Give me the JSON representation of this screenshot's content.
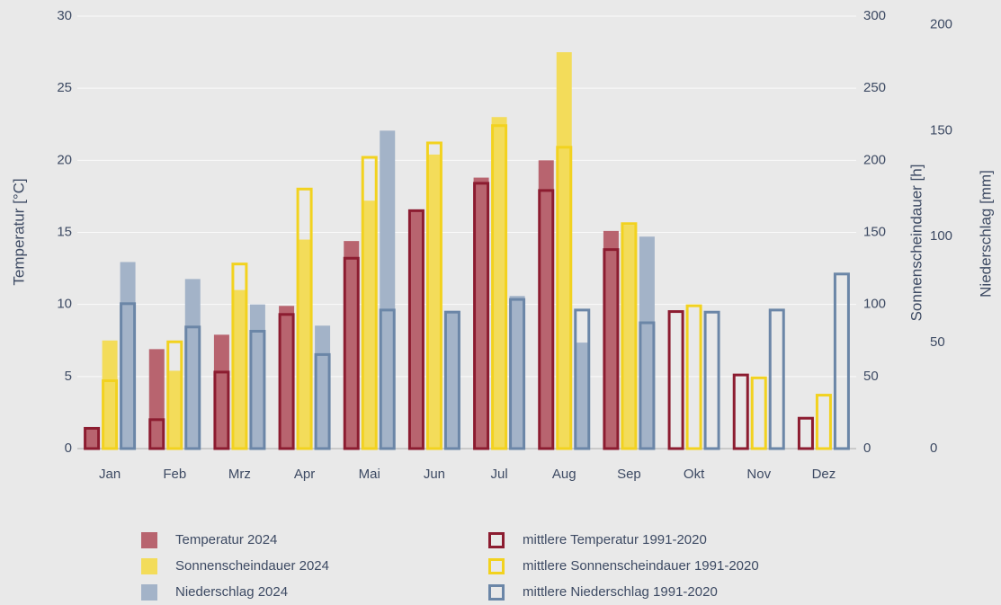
{
  "chart_data": {
    "type": "bar",
    "categories": [
      "Jan",
      "Feb",
      "Mrz",
      "Apr",
      "Mai",
      "Jun",
      "Jul",
      "Aug",
      "Sep",
      "Okt",
      "Nov",
      "Dez"
    ],
    "ylabel": "Temperatur [°C]",
    "ylim": [
      0,
      30
    ],
    "yticks": [
      0,
      5,
      10,
      15,
      20,
      25,
      30
    ],
    "y2label": "Sonnenscheindauer [h]",
    "y2lim": [
      0,
      300
    ],
    "y2ticks": [
      0,
      50,
      100,
      150,
      200,
      250,
      300
    ],
    "y3label": "Niederschlag [mm]",
    "y3lim": [
      0,
      204
    ],
    "y3ticks": [
      0,
      50,
      100,
      150,
      200
    ],
    "grid": true,
    "series": [
      {
        "name": "Temperatur 2024",
        "color": "#b8646f",
        "style": "filled",
        "axis": "y",
        "group": 0,
        "values": [
          1.4,
          6.9,
          7.9,
          9.9,
          14.4,
          16.5,
          18.8,
          20.0,
          15.1,
          null,
          null,
          null
        ]
      },
      {
        "name": "Sonnenscheindauer 2024",
        "color": "#f3dc5a",
        "style": "filled",
        "axis": "y2",
        "group": 1,
        "values": [
          75,
          54,
          110,
          145,
          172,
          204,
          230,
          275,
          155,
          null,
          null,
          null
        ]
      },
      {
        "name": "Niederschlag 2024",
        "color": "#a3b3c8",
        "style": "filled",
        "axis": "y3",
        "group": 2,
        "values": [
          88,
          80,
          68,
          58,
          150,
          65,
          72,
          50,
          100,
          null,
          null,
          null
        ]
      },
      {
        "name": "mittlere Temperatur 1991-2020",
        "color": "#8c1c30",
        "style": "outline",
        "axis": "y",
        "group": 0,
        "values": [
          1.5,
          2.1,
          5.4,
          9.4,
          13.3,
          16.6,
          18.5,
          18.0,
          13.9,
          9.6,
          5.2,
          2.2
        ]
      },
      {
        "name": "mittlere Sonnenscheindauer 1991-2020",
        "color": "#f2d21f",
        "style": "outline",
        "axis": "y2",
        "group": 1,
        "values": [
          48,
          75,
          129,
          181,
          203,
          213,
          225,
          210,
          157,
          100,
          50,
          38
        ]
      },
      {
        "name": "mittlere Niederschlag 1991-2020",
        "color": "#6b86a7",
        "style": "outline",
        "axis": "y3",
        "group": 2,
        "values": [
          69,
          58,
          56,
          45,
          66,
          65,
          71,
          66,
          60,
          65,
          66,
          83
        ]
      }
    ]
  }
}
